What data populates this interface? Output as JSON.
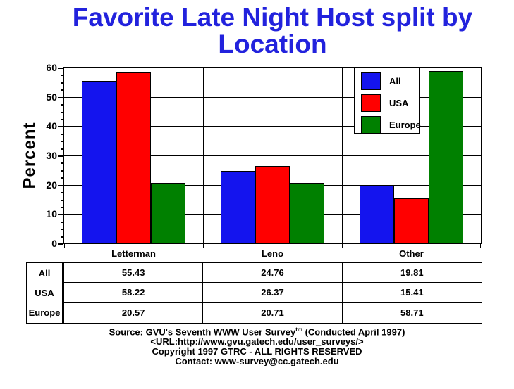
{
  "title": {
    "line1": "Favorite Late Night Host split by",
    "line2": "Location",
    "color": "#2222DD"
  },
  "chart_data": {
    "type": "bar",
    "categories": [
      "Letterman",
      "Leno",
      "Other"
    ],
    "series": [
      {
        "name": "All",
        "color": "#1414EE",
        "values": [
          55.43,
          24.76,
          19.81
        ]
      },
      {
        "name": "USA",
        "color": "#FF0000",
        "values": [
          58.22,
          26.37,
          15.41
        ]
      },
      {
        "name": "Europe",
        "color": "#008000",
        "values": [
          20.57,
          20.71,
          58.71
        ]
      }
    ],
    "title": "Favorite Late Night Host split by Location",
    "xlabel": "",
    "ylabel": "Percent",
    "ylim": [
      0,
      60
    ],
    "ytick_step": 10,
    "minor_tick_step": 2.5,
    "grid": "horizontal-major-and-category-separators",
    "legend_position": "top-right-inside"
  },
  "table": {
    "row_headers": [
      "All",
      "USA",
      "Europe"
    ],
    "rows": [
      [
        "55.43",
        "24.76",
        "19.81"
      ],
      [
        "58.22",
        "26.37",
        "15.41"
      ],
      [
        "20.57",
        "20.71",
        "58.71"
      ]
    ]
  },
  "footer": {
    "source_prefix": "Source: GVU's Seventh WWW User Survey",
    "source_sup": "tm",
    "source_suffix": " (Conducted April 1997)",
    "url_line": "<URL:http://www.gvu.gatech.edu/user_surveys/>",
    "copyright_line": "Copyright 1997 GTRC - ALL RIGHTS RESERVED",
    "contact_line": "Contact: www-survey@cc.gatech.edu"
  },
  "colors": {
    "axis": "#000000",
    "background": "#FFFFFF"
  }
}
